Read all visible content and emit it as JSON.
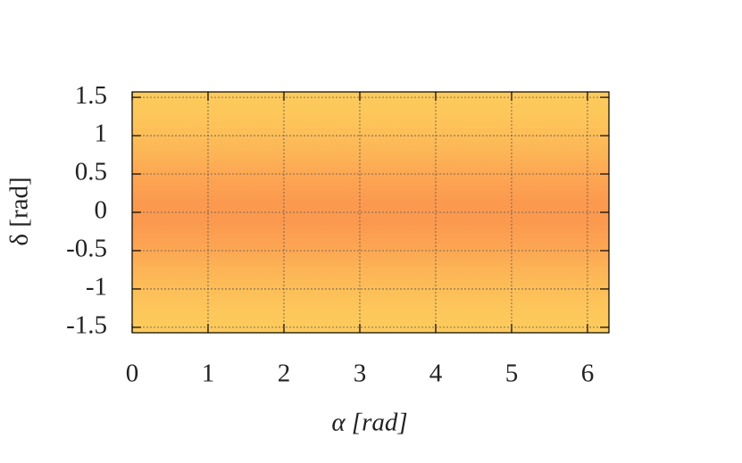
{
  "chart_data": {
    "type": "heatmap",
    "xlabel": "α [rad]",
    "ylabel": "δ [rad]",
    "xlim": [
      0,
      6.283
    ],
    "ylim": [
      -1.571,
      1.571
    ],
    "xticks": [
      0,
      1,
      2,
      3,
      4,
      5,
      6
    ],
    "yticks": [
      -1.5,
      -1,
      -0.5,
      0,
      0.5,
      1,
      1.5
    ],
    "grid": true,
    "row_colors_top_to_bottom": [
      "#fdcb5c",
      "#fdc75a",
      "#fdbe58",
      "#fcb255",
      "#fca452",
      "#fb9a4f",
      "#fb9a4f",
      "#fca452",
      "#fcb255",
      "#fdbe58",
      "#fdc75a",
      "#fdcb5c"
    ]
  }
}
